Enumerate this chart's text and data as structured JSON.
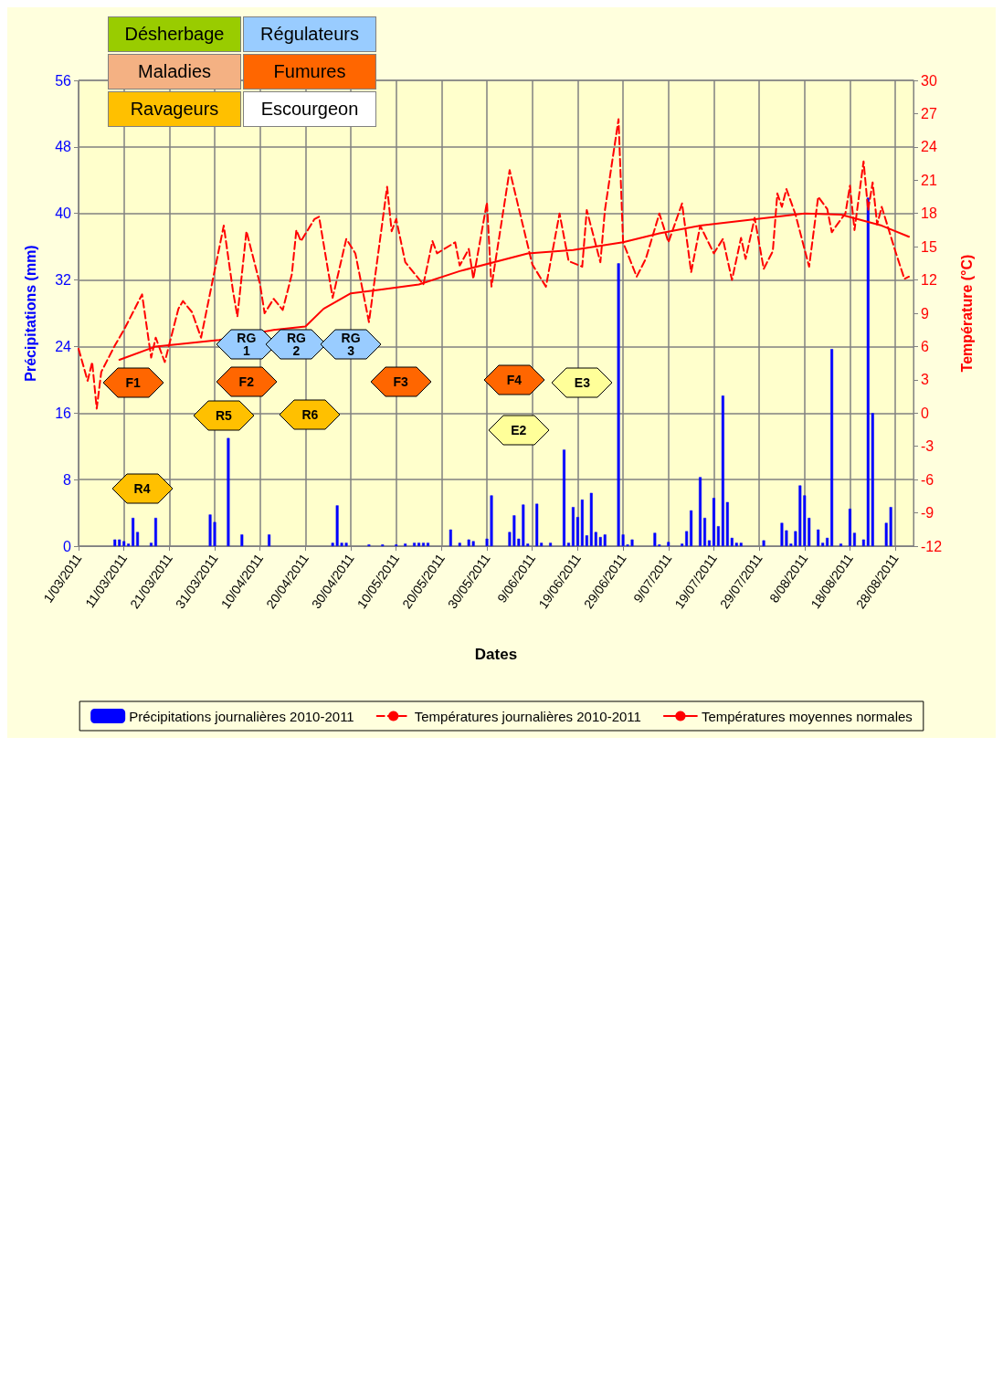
{
  "chart_data": {
    "type": "bar",
    "xlabel": "Dates",
    "ylabel": "Précipitations (mm)",
    "y2label": "Température (°C)",
    "xlim": [
      "2011-03-01",
      "2011-09-01"
    ],
    "xticks": [
      {
        "value": "2011-03-01",
        "label": "1/03/2011"
      },
      {
        "value": "2011-03-11",
        "label": "11/03/2011"
      },
      {
        "value": "2011-03-21",
        "label": "21/03/2011"
      },
      {
        "value": "2011-03-31",
        "label": "31/03/2011"
      },
      {
        "value": "2011-04-10",
        "label": "10/04/2011"
      },
      {
        "value": "2011-04-20",
        "label": "20/04/2011"
      },
      {
        "value": "2011-04-30",
        "label": "30/04/2011"
      },
      {
        "value": "2011-05-10",
        "label": "10/05/2011"
      },
      {
        "value": "2011-05-20",
        "label": "20/05/2011"
      },
      {
        "value": "2011-05-30",
        "label": "30/05/2011"
      },
      {
        "value": "2011-06-09",
        "label": "9/06/2011"
      },
      {
        "value": "2011-06-19",
        "label": "19/06/2011"
      },
      {
        "value": "2011-06-29",
        "label": "29/06/2011"
      },
      {
        "value": "2011-07-09",
        "label": "9/07/2011"
      },
      {
        "value": "2011-07-19",
        "label": "19/07/2011"
      },
      {
        "value": "2011-07-29",
        "label": "29/07/2011"
      },
      {
        "value": "2011-08-08",
        "label": "8/08/2011"
      },
      {
        "value": "2011-08-18",
        "label": "18/08/2011"
      },
      {
        "value": "2011-08-28",
        "label": "28/08/2011"
      }
    ],
    "ylim": [
      0,
      56
    ],
    "yticks": [
      0,
      8,
      16,
      24,
      32,
      40,
      48,
      56
    ],
    "y2lim": [
      -12,
      30
    ],
    "y2ticks": [
      -12,
      -9,
      -6,
      -3,
      0,
      3,
      6,
      9,
      12,
      15,
      18,
      21,
      24,
      27,
      30
    ],
    "grid": true,
    "legend": "bottom",
    "series": [
      {
        "name": "Précipitations journalières 2010-2011",
        "color": "#0000ff",
        "x": [
          "2011-03-09",
          "2011-03-10",
          "2011-03-11",
          "2011-03-12",
          "2011-03-13",
          "2011-03-14",
          "2011-03-17",
          "2011-03-18",
          "2011-03-30",
          "2011-03-31",
          "2011-04-03",
          "2011-04-06",
          "2011-04-12",
          "2011-04-26",
          "2011-04-27",
          "2011-04-28",
          "2011-04-29",
          "2011-05-04",
          "2011-05-07",
          "2011-05-10",
          "2011-05-12",
          "2011-05-14",
          "2011-05-15",
          "2011-05-16",
          "2011-05-17",
          "2011-05-22",
          "2011-05-24",
          "2011-05-26",
          "2011-05-27",
          "2011-05-30",
          "2011-05-31",
          "2011-06-04",
          "2011-06-05",
          "2011-06-06",
          "2011-06-07",
          "2011-06-08",
          "2011-06-10",
          "2011-06-11",
          "2011-06-13",
          "2011-06-16",
          "2011-06-17",
          "2011-06-18",
          "2011-06-19",
          "2011-06-20",
          "2011-06-21",
          "2011-06-22",
          "2011-06-23",
          "2011-06-24",
          "2011-06-25",
          "2011-06-28",
          "2011-06-29",
          "2011-06-30",
          "2011-07-01",
          "2011-07-06",
          "2011-07-07",
          "2011-07-09",
          "2011-07-12",
          "2011-07-13",
          "2011-07-14",
          "2011-07-16",
          "2011-07-17",
          "2011-07-18",
          "2011-07-19",
          "2011-07-20",
          "2011-07-21",
          "2011-07-22",
          "2011-07-23",
          "2011-07-24",
          "2011-07-25",
          "2011-07-30",
          "2011-08-03",
          "2011-08-04",
          "2011-08-05",
          "2011-08-06",
          "2011-08-07",
          "2011-08-08",
          "2011-08-09",
          "2011-08-11",
          "2011-08-12",
          "2011-08-13",
          "2011-08-14",
          "2011-08-16",
          "2011-08-18",
          "2011-08-19",
          "2011-08-21",
          "2011-08-22",
          "2011-08-23",
          "2011-08-26",
          "2011-08-27"
        ],
        "values": [
          0.8,
          0.8,
          0.6,
          0.3,
          3.4,
          1.7,
          0.4,
          3.4,
          3.8,
          2.9,
          13.0,
          1.4,
          1.4,
          0.4,
          4.9,
          0.4,
          0.4,
          0.2,
          0.2,
          0.2,
          0.3,
          0.4,
          0.4,
          0.4,
          0.4,
          2.0,
          0.4,
          0.8,
          0.6,
          0.9,
          6.1,
          1.7,
          3.7,
          0.9,
          5.0,
          0.3,
          5.1,
          0.4,
          0.4,
          11.6,
          0.4,
          4.7,
          3.5,
          5.6,
          1.3,
          6.4,
          1.7,
          1.1,
          1.4,
          34.0,
          1.4,
          0.2,
          0.8,
          1.6,
          0.2,
          0.5,
          0.3,
          1.8,
          4.3,
          8.3,
          3.4,
          0.7,
          5.8,
          2.4,
          18.1,
          5.3,
          1.0,
          0.4,
          0.4,
          0.7,
          2.8,
          1.9,
          0.3,
          1.8,
          7.3,
          6.1,
          3.4,
          2.0,
          0.4,
          1.0,
          23.7,
          0.3,
          4.5,
          1.6,
          0.8,
          41.9,
          16.0,
          2.8,
          4.7
        ]
      },
      {
        "type": "line",
        "name": "Températures journalières 2010-2011",
        "color": "#ff0000",
        "axis": "y2",
        "line_style": "dashed",
        "marker": "none",
        "x": [
          "2011-03-01",
          "2011-03-03",
          "2011-03-04",
          "2011-03-05",
          "2011-03-06",
          "2011-03-09",
          "2011-03-11",
          "2011-03-15",
          "2011-03-17",
          "2011-03-18",
          "2011-03-20",
          "2011-03-23",
          "2011-03-24",
          "2011-03-26",
          "2011-03-28",
          "2011-04-02",
          "2011-04-04",
          "2011-04-05",
          "2011-04-07",
          "2011-04-10",
          "2011-04-11",
          "2011-04-13",
          "2011-04-15",
          "2011-04-17",
          "2011-04-18",
          "2011-04-19",
          "2011-04-22",
          "2011-04-23",
          "2011-04-26",
          "2011-04-29",
          "2011-05-01",
          "2011-05-04",
          "2011-05-08",
          "2011-05-09",
          "2011-05-10",
          "2011-05-12",
          "2011-05-16",
          "2011-05-18",
          "2011-05-19",
          "2011-05-23",
          "2011-05-24",
          "2011-05-26",
          "2011-05-27",
          "2011-05-30",
          "2011-05-31",
          "2011-06-04",
          "2011-06-09",
          "2011-06-12",
          "2011-06-15",
          "2011-06-17",
          "2011-06-20",
          "2011-06-21",
          "2011-06-24",
          "2011-06-25",
          "2011-06-28",
          "2011-06-29",
          "2011-07-02",
          "2011-07-04",
          "2011-07-07",
          "2011-07-09",
          "2011-07-12",
          "2011-07-14",
          "2011-07-16",
          "2011-07-19",
          "2011-07-21",
          "2011-07-23",
          "2011-07-25",
          "2011-07-26",
          "2011-07-28",
          "2011-07-30",
          "2011-08-01",
          "2011-08-02",
          "2011-08-03",
          "2011-08-04",
          "2011-08-06",
          "2011-08-09",
          "2011-08-11",
          "2011-08-13",
          "2011-08-14",
          "2011-08-15",
          "2011-08-17",
          "2011-08-18",
          "2011-08-19",
          "2011-08-21",
          "2011-08-22",
          "2011-08-23",
          "2011-08-24",
          "2011-08-25",
          "2011-08-28",
          "2011-08-30",
          "2011-08-31"
        ],
        "values": [
          5.8,
          2.9,
          4.6,
          0.4,
          3.7,
          6.1,
          7.5,
          10.7,
          5.0,
          6.8,
          4.6,
          9.4,
          10.1,
          9.1,
          6.8,
          16.9,
          11.1,
          8.7,
          16.4,
          11.6,
          9.0,
          10.3,
          9.3,
          12.5,
          16.5,
          15.5,
          17.5,
          17.7,
          10.4,
          15.7,
          14.4,
          8.2,
          20.4,
          16.4,
          17.5,
          13.6,
          11.6,
          15.5,
          14.4,
          15.4,
          13.3,
          14.8,
          12.1,
          19.0,
          11.4,
          21.9,
          13.4,
          11.4,
          18.0,
          13.7,
          13.2,
          18.3,
          13.6,
          18.3,
          26.5,
          15.4,
          12.3,
          13.9,
          18.0,
          15.4,
          18.9,
          12.7,
          16.9,
          14.4,
          15.7,
          12.0,
          15.8,
          13.9,
          17.6,
          13.0,
          14.6,
          19.8,
          18.6,
          20.2,
          17.9,
          13.2,
          19.5,
          18.4,
          16.3,
          16.9,
          18.0,
          20.5,
          16.5,
          22.7,
          18.3,
          20.8,
          17.0,
          18.6,
          14.6,
          12.1,
          12.3
        ]
      },
      {
        "type": "line",
        "name": "Températures moyennes normales",
        "color": "#ff0000",
        "axis": "y2",
        "line_style": "solid",
        "marker": "none",
        "x": [
          "2011-03-10",
          "2011-03-18",
          "2011-04-01",
          "2011-04-13",
          "2011-04-20",
          "2011-04-24",
          "2011-04-30",
          "2011-05-06",
          "2011-05-15",
          "2011-05-24",
          "2011-06-08",
          "2011-06-18",
          "2011-06-29",
          "2011-07-07",
          "2011-07-16",
          "2011-08-08",
          "2011-08-16",
          "2011-08-25",
          "2011-08-31"
        ],
        "values": [
          4.8,
          6.0,
          6.6,
          7.5,
          7.8,
          9.4,
          10.8,
          11.1,
          11.6,
          12.8,
          14.4,
          14.7,
          15.4,
          16.2,
          16.9,
          18.0,
          17.9,
          16.9,
          15.9
        ]
      }
    ],
    "annotations": [
      "Désherbage",
      "Maladies",
      "Ravageurs",
      "Régulateurs",
      "Fumures",
      "Escourgeon",
      "R4",
      "R5",
      "R6",
      "RG 1",
      "RG 2",
      "RG 3",
      "F1",
      "F2",
      "F3",
      "F4",
      "E2",
      "E3"
    ]
  }
}
